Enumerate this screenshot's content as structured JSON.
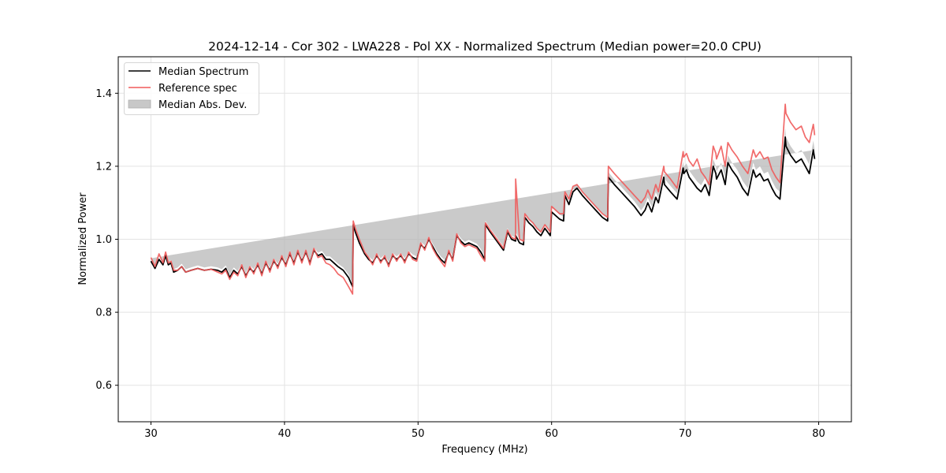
{
  "chart_data": {
    "type": "line",
    "title": "2024-12-14 - Cor 302 - LWA228 - Pol XX - Normalized Spectrum (Median power=20.0 CPU)",
    "xlabel": "Frequency (MHz)",
    "ylabel": "Normalized Power",
    "xlim": [
      27.55,
      82.45
    ],
    "ylim": [
      0.5,
      1.5
    ],
    "xticks": [
      30,
      40,
      50,
      60,
      70,
      80
    ],
    "xtick_labels": [
      "30",
      "40",
      "50",
      "60",
      "70",
      "80"
    ],
    "yticks": [
      0.6,
      0.8,
      1.0,
      1.2,
      1.4
    ],
    "ytick_labels": [
      "0.6",
      "0.8",
      "1.0",
      "1.2",
      "1.4"
    ],
    "grid": true,
    "legend": {
      "position": "upper-left",
      "entries": [
        {
          "label": "Median Spectrum",
          "kind": "line",
          "color": "#000000"
        },
        {
          "label": "Reference spec",
          "kind": "line",
          "color": "#f05a5a"
        },
        {
          "label": "Median Abs. Dev.",
          "kind": "band",
          "color": "#c8c8c8"
        }
      ]
    },
    "colors": {
      "median": "#000000",
      "reference": "#f05a5a",
      "mad_band": "#b4b4b4"
    },
    "x": [
      30.0,
      30.3,
      30.6,
      30.9,
      31.1,
      31.3,
      31.5,
      31.7,
      32.0,
      32.3,
      32.6,
      33.0,
      33.5,
      34.0,
      34.5,
      35.0,
      35.3,
      35.6,
      35.9,
      36.2,
      36.5,
      36.8,
      37.1,
      37.4,
      37.7,
      38.0,
      38.3,
      38.6,
      38.9,
      39.2,
      39.5,
      39.8,
      40.1,
      40.4,
      40.7,
      41.0,
      41.3,
      41.6,
      41.9,
      42.2,
      42.5,
      42.8,
      43.1,
      43.4,
      43.7,
      44.0,
      44.4,
      44.8,
      45.1,
      45.15,
      45.3,
      45.6,
      46.0,
      46.3,
      46.6,
      46.9,
      47.2,
      47.5,
      47.8,
      48.1,
      48.4,
      48.7,
      49.0,
      49.3,
      49.6,
      49.9,
      50.2,
      50.5,
      50.8,
      51.1,
      51.4,
      51.7,
      52.0,
      52.3,
      52.6,
      52.9,
      53.2,
      53.5,
      53.8,
      54.1,
      54.4,
      54.7,
      55.0,
      55.05,
      55.4,
      55.8,
      56.1,
      56.4,
      56.7,
      57.0,
      57.3,
      57.31,
      57.6,
      57.9,
      58.0,
      58.3,
      58.6,
      58.9,
      59.2,
      59.5,
      59.9,
      60.0,
      60.3,
      60.6,
      60.9,
      61.0,
      61.3,
      61.6,
      61.9,
      62.3,
      62.8,
      63.3,
      63.8,
      64.2,
      64.25,
      64.7,
      65.2,
      65.7,
      66.2,
      66.7,
      67.0,
      67.2,
      67.5,
      67.8,
      68.0,
      68.4,
      68.45,
      68.9,
      69.4,
      69.85,
      69.9,
      70.1,
      70.3,
      70.6,
      70.9,
      71.2,
      71.5,
      71.8,
      72.1,
      72.3,
      72.35,
      72.7,
      73.0,
      73.2,
      73.5,
      73.9,
      74.3,
      74.7,
      75.1,
      75.3,
      75.6,
      75.9,
      76.2,
      76.5,
      76.8,
      77.1,
      77.5,
      77.55,
      77.9,
      78.3,
      78.7,
      79.0,
      79.3,
      79.6,
      79.7,
      80.0
    ],
    "series": [
      {
        "name": "Median Spectrum",
        "values": [
          0.94,
          0.92,
          0.945,
          0.93,
          0.955,
          0.93,
          0.935,
          0.91,
          0.915,
          0.925,
          0.91,
          0.915,
          0.92,
          0.915,
          0.918,
          0.915,
          0.91,
          0.92,
          0.895,
          0.915,
          0.905,
          0.925,
          0.9,
          0.92,
          0.91,
          0.93,
          0.905,
          0.935,
          0.915,
          0.94,
          0.925,
          0.95,
          0.93,
          0.96,
          0.935,
          0.965,
          0.94,
          0.965,
          0.935,
          0.97,
          0.955,
          0.96,
          0.945,
          0.945,
          0.935,
          0.925,
          0.915,
          0.895,
          0.87,
          1.04,
          1.02,
          0.99,
          0.96,
          0.945,
          0.935,
          0.955,
          0.94,
          0.95,
          0.93,
          0.955,
          0.945,
          0.955,
          0.94,
          0.96,
          0.95,
          0.945,
          0.985,
          0.975,
          1.0,
          0.98,
          0.96,
          0.945,
          0.935,
          0.965,
          0.945,
          1.01,
          0.995,
          0.985,
          0.99,
          0.985,
          0.98,
          0.965,
          0.945,
          1.04,
          1.02,
          1.0,
          0.985,
          0.97,
          1.02,
          1.0,
          0.995,
          1.01,
          0.99,
          0.985,
          1.06,
          1.045,
          1.035,
          1.02,
          1.01,
          1.03,
          1.01,
          1.075,
          1.065,
          1.055,
          1.05,
          1.12,
          1.095,
          1.13,
          1.14,
          1.12,
          1.1,
          1.08,
          1.06,
          1.05,
          1.17,
          1.15,
          1.13,
          1.11,
          1.09,
          1.065,
          1.08,
          1.1,
          1.075,
          1.115,
          1.1,
          1.17,
          1.15,
          1.13,
          1.11,
          1.195,
          1.18,
          1.19,
          1.17,
          1.155,
          1.14,
          1.13,
          1.15,
          1.12,
          1.2,
          1.18,
          1.165,
          1.19,
          1.15,
          1.21,
          1.19,
          1.17,
          1.14,
          1.12,
          1.19,
          1.17,
          1.18,
          1.16,
          1.165,
          1.14,
          1.12,
          1.11,
          1.28,
          1.255,
          1.23,
          1.21,
          1.22,
          1.2,
          1.18,
          1.245,
          1.22
        ]
      },
      {
        "name": "Reference spec",
        "values": [
          0.95,
          0.925,
          0.96,
          0.935,
          0.965,
          0.935,
          0.94,
          0.915,
          0.915,
          0.925,
          0.91,
          0.915,
          0.92,
          0.915,
          0.918,
          0.91,
          0.905,
          0.915,
          0.89,
          0.91,
          0.9,
          0.93,
          0.895,
          0.925,
          0.905,
          0.935,
          0.9,
          0.94,
          0.91,
          0.945,
          0.92,
          0.955,
          0.925,
          0.965,
          0.93,
          0.97,
          0.935,
          0.97,
          0.93,
          0.975,
          0.95,
          0.955,
          0.935,
          0.93,
          0.92,
          0.905,
          0.895,
          0.87,
          0.85,
          1.05,
          1.03,
          1.0,
          0.965,
          0.95,
          0.93,
          0.96,
          0.935,
          0.955,
          0.925,
          0.96,
          0.94,
          0.96,
          0.935,
          0.965,
          0.945,
          0.94,
          0.99,
          0.97,
          1.005,
          0.975,
          0.955,
          0.94,
          0.925,
          0.97,
          0.94,
          1.015,
          0.99,
          0.98,
          0.985,
          0.98,
          0.975,
          0.955,
          0.94,
          1.045,
          1.025,
          1.005,
          0.99,
          0.975,
          1.025,
          1.005,
          1.0,
          1.165,
          1.0,
          0.995,
          1.07,
          1.055,
          1.045,
          1.03,
          1.02,
          1.04,
          1.02,
          1.09,
          1.08,
          1.07,
          1.07,
          1.13,
          1.11,
          1.145,
          1.15,
          1.13,
          1.11,
          1.09,
          1.07,
          1.06,
          1.2,
          1.18,
          1.16,
          1.14,
          1.12,
          1.1,
          1.115,
          1.135,
          1.11,
          1.15,
          1.13,
          1.2,
          1.185,
          1.165,
          1.14,
          1.24,
          1.225,
          1.235,
          1.215,
          1.2,
          1.22,
          1.185,
          1.17,
          1.15,
          1.255,
          1.235,
          1.22,
          1.255,
          1.2,
          1.265,
          1.245,
          1.225,
          1.2,
          1.18,
          1.245,
          1.225,
          1.24,
          1.22,
          1.225,
          1.19,
          1.17,
          1.155,
          1.37,
          1.345,
          1.32,
          1.3,
          1.31,
          1.28,
          1.265,
          1.315,
          1.285
        ]
      }
    ],
    "mad_band_halfwidth": [
      0.008,
      0.008,
      0.008,
      0.008,
      0.008,
      0.008,
      0.008,
      0.008,
      0.008,
      0.008,
      0.008,
      0.008,
      0.008,
      0.008,
      0.008,
      0.008,
      0.008,
      0.008,
      0.008,
      0.008,
      0.008,
      0.008,
      0.008,
      0.008,
      0.008,
      0.008,
      0.008,
      0.008,
      0.008,
      0.008,
      0.008,
      0.008,
      0.008,
      0.008,
      0.008,
      0.008,
      0.008,
      0.008,
      0.008,
      0.008,
      0.008,
      0.008,
      0.008,
      0.008,
      0.008,
      0.008,
      0.008,
      0.008,
      0.008,
      0.008,
      0.008,
      0.008,
      0.008,
      0.008,
      0.008,
      0.008,
      0.008,
      0.008,
      0.008,
      0.008,
      0.008,
      0.008,
      0.008,
      0.008,
      0.008,
      0.008,
      0.008,
      0.008,
      0.008,
      0.008,
      0.008,
      0.008,
      0.008,
      0.008,
      0.008,
      0.008,
      0.008,
      0.008,
      0.008,
      0.008,
      0.008,
      0.008,
      0.008,
      0.01,
      0.01,
      0.01,
      0.01,
      0.01,
      0.01,
      0.01,
      0.01,
      0.01,
      0.01,
      0.01,
      0.01,
      0.01,
      0.01,
      0.01,
      0.01,
      0.01,
      0.01,
      0.012,
      0.012,
      0.012,
      0.012,
      0.012,
      0.012,
      0.012,
      0.012,
      0.012,
      0.012,
      0.012,
      0.012,
      0.012,
      0.014,
      0.014,
      0.014,
      0.014,
      0.014,
      0.014,
      0.014,
      0.014,
      0.014,
      0.014,
      0.014,
      0.016,
      0.016,
      0.016,
      0.016,
      0.018,
      0.018,
      0.018,
      0.018,
      0.018,
      0.018,
      0.018,
      0.018,
      0.018,
      0.02,
      0.02,
      0.02,
      0.02,
      0.02,
      0.02,
      0.02,
      0.02,
      0.02,
      0.02,
      0.02,
      0.02,
      0.02,
      0.02,
      0.02,
      0.02,
      0.02,
      0.02,
      0.025,
      0.025,
      0.025,
      0.025,
      0.025,
      0.025,
      0.025,
      0.025,
      0.025
    ]
  }
}
